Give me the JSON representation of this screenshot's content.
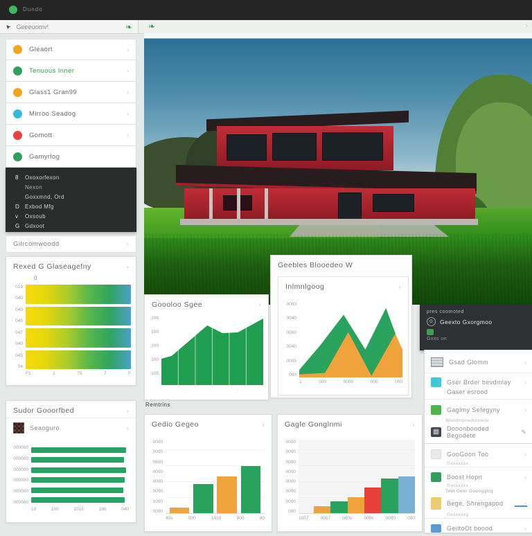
{
  "app": {
    "title": "Dundo"
  },
  "icons": {
    "cursor": "➤",
    "leaf": "❧",
    "chevron": "›",
    "pencil": "✎",
    "circle_glyph": "G",
    "mosaic": "▦"
  },
  "colors": {
    "accent_green": "#2ea664",
    "topbar_dot": "#3cb95c",
    "orange": "#f5a41f",
    "cyan": "#35b8d9",
    "red": "#e8413f",
    "chart_green": "#28a25c",
    "chart_orange": "#f0a33c",
    "chart_red": "#e8413c",
    "chart_blue": "#7bafd4",
    "info_green": "#3f9e53"
  },
  "toolbar": {
    "search_value": "Geeeuomv!"
  },
  "sidebar": {
    "items": [
      {
        "label": "Gleaort",
        "color": "#f5a41f"
      },
      {
        "label": "Tenuous Inner",
        "color": "#2ea05e"
      },
      {
        "label": "Glass1 Gran99",
        "color": "#f5a41f"
      },
      {
        "label": "Mirroo Seadog",
        "color": "#35b8d9"
      },
      {
        "label": "Gomott",
        "color": "#e8413f"
      },
      {
        "label": "Gamyrlog",
        "color": "#2ea05e"
      }
    ]
  },
  "menu": {
    "items": [
      {
        "prefix": "8",
        "label": "Oxoxorfexon"
      },
      {
        "prefix": "",
        "label": "Nexon"
      },
      {
        "prefix": "",
        "label": "Goxxmnd, Ord"
      },
      {
        "prefix": "D",
        "label": "Exbod Mfg"
      },
      {
        "prefix": "v",
        "label": "Oxsoub"
      },
      {
        "prefix": "G",
        "label": "Gdxoot"
      }
    ]
  },
  "collapsed_item": {
    "label": "Gilrcomwoodd"
  },
  "panels": {
    "quality_corner": "0",
    "sudor_sub": "Seaoguro",
    "geebles_header": "Geebles Blooedeo W",
    "remtrins": "Remtrins"
  },
  "info_panel": {
    "line1": "pres coomoted",
    "line2": "Geexto Gxorgmoo",
    "line3": "Gxxs on"
  },
  "right_list": {
    "items": [
      {
        "label": "Gsad Glomm"
      },
      {
        "label": "Gser Brder bevdinlay",
        "label2": "Gaser esrood",
        "color": "#3ec9d9"
      },
      {
        "label": "Gaglmy Sefegyny",
        "color": "#4cb54c"
      },
      {
        "over": "Woodinpoedoooete",
        "label": "Dooonbooded Begodete",
        "color": "#3f444a"
      },
      {
        "label": "GooGoon Too",
        "sub": "Gxxxxxxx",
        "color": "#e9eaea"
      },
      {
        "label": "Boost Hopn",
        "sub": "Gxxxxxxx",
        "color": "#2ea05e"
      },
      {
        "over": "Teel Geer Gooogghty",
        "label": "Bege, Shrengapod",
        "sub": "Gxxxxxxg",
        "color": "#eecb6e"
      },
      {
        "label": "GeiltoOt boood",
        "color": "#5b9bd5"
      }
    ]
  },
  "chart_data": [
    {
      "type": "bar",
      "render": "hbar",
      "orientation": "horizontal",
      "title": "Rexed G Glaseagefny",
      "categories": [
        "",
        "",
        "",
        ""
      ],
      "values": [
        100,
        100,
        100,
        100
      ],
      "gradient": [
        "#f7d90a",
        "#e3d60e",
        "#a9cc2c",
        "#5bb74a",
        "#2fa35f",
        "#4aa3c8"
      ],
      "yticks": [
        "019",
        "040",
        "040",
        "040",
        "047",
        "040",
        "045",
        "04"
      ],
      "xticks": [
        "F1",
        "1",
        "75",
        "7",
        "F"
      ],
      "xlabel": "",
      "ylabel": "",
      "grid": false
    },
    {
      "type": "bar",
      "render": "hbar",
      "orientation": "horizontal",
      "title": "Sudor Gooorfbed",
      "categories": [
        "000000",
        "000000",
        "000000",
        "000000",
        "000000",
        "000000"
      ],
      "values": [
        97,
        95,
        97,
        96,
        94,
        96
      ],
      "color": "#28a265",
      "yticks": [
        "000000",
        "000000",
        "000000",
        "000000",
        "000000",
        "000000"
      ],
      "xticks": [
        "10",
        "100",
        "1015",
        "180",
        "040"
      ],
      "xlim": [
        0,
        100
      ],
      "grid": false
    },
    {
      "type": "area",
      "render": "area",
      "title": "Goooloo Sgee",
      "ylim": [
        0,
        100
      ],
      "series": [
        {
          "name": "sales",
          "color": "#1f9e4f",
          "x_frac": [
            0,
            0.1,
            0.45,
            0.6,
            0.75,
            1
          ],
          "y_pct": [
            38,
            42,
            86,
            75,
            76,
            96
          ]
        }
      ],
      "vlines": [
        0.166,
        0.333,
        0.5,
        0.666,
        0.833
      ],
      "yticks": [
        "206",
        "100",
        "200",
        "100",
        "105",
        ""
      ],
      "xticks": [
        "",
        "·",
        "",
        "·",
        ""
      ],
      "grid": false
    },
    {
      "type": "area",
      "render": "area",
      "title": "Inlmnlgoog",
      "ylim": [
        0,
        100
      ],
      "series": [
        {
          "name": "green",
          "color": "#28a25c",
          "x_frac": [
            0,
            0.2,
            0.43,
            0.64,
            0.84,
            1
          ],
          "y_pct": [
            10,
            42,
            83,
            37,
            92,
            33
          ]
        },
        {
          "name": "orange",
          "color": "#f0a33c",
          "x_frac": [
            0,
            0.25,
            0.475,
            0.7,
            0.93,
            1
          ],
          "y_pct": [
            4,
            6,
            60,
            2,
            58,
            37
          ]
        }
      ],
      "yticks": [
        "0000",
        "0040",
        "0000",
        "0040",
        "0005",
        "000"
      ],
      "xticks": [
        "1",
        "000",
        "0000",
        "000",
        "000"
      ],
      "legend": "none",
      "grid": false
    },
    {
      "type": "bar",
      "render": "vbar",
      "title": "Gedio Gegeo",
      "categories": [
        "40s",
        "000",
        "1910",
        "900"
      ],
      "values": [
        8,
        40,
        50,
        64
      ],
      "colors": [
        "#f0a33c",
        "#28a25c",
        "#f0a33c",
        "#28a25c"
      ],
      "yticks": [
        "0000",
        "0000",
        "0600",
        "0000",
        "0000",
        "0000",
        "1000",
        "0000"
      ],
      "xticks": [
        "40s",
        "000",
        "1910",
        "900",
        "80"
      ],
      "ylim": [
        0,
        100
      ],
      "grid": true
    },
    {
      "type": "bar",
      "render": "vbar",
      "title": "Gagle Gonglnmi",
      "categories": [
        "1007",
        "0007",
        "000s",
        "000s",
        "0000",
        "000"
      ],
      "values": [
        9,
        16,
        22,
        35,
        47,
        50
      ],
      "colors": [
        "#f0a33c",
        "#28a25c",
        "#f0a33c",
        "#e8413c",
        "#28a25c",
        "#7bafd4"
      ],
      "yticks": [
        "0000",
        "0000",
        "0000",
        "0000",
        "0000",
        "0000",
        "0000",
        "000"
      ],
      "xticks": [
        "1007",
        "0007",
        "000s",
        "000s",
        "0000",
        "000"
      ],
      "ylim": [
        0,
        100
      ],
      "grid": true
    }
  ]
}
